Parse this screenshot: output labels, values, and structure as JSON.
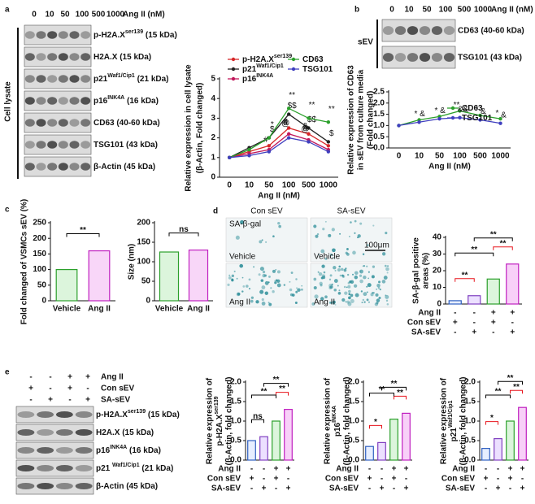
{
  "figure": {
    "panel_labels": [
      "a",
      "b",
      "c",
      "d",
      "e"
    ],
    "blots": [
      {
        "treatment": "Ang II (nM)",
        "color": "#e8141c",
        "doses": [
          "0",
          "10",
          "50",
          "100",
          "500",
          "1000"
        ],
        "group": "Cell lysate",
        "bands": [
          {
            "text": "p-H2A.X",
            "sup": "ser139",
            "after": " (15 kDa)"
          },
          {
            "text": "H2A.X (15 kDa)"
          },
          {
            "text": "p21",
            "sup": "Waf1/Cip1",
            "after": " (21 kDa)"
          },
          {
            "text": "p16",
            "sup": "INK4A",
            "after": " (16 kDa)"
          },
          {
            "text": "CD63 (40-60 kDa)"
          },
          {
            "text": "TSG101 (43 kDa)"
          },
          {
            "text": "β-Actin (45 kDa)"
          }
        ]
      },
      {
        "treatment": "Ang II (nM)",
        "color": "#e8141c",
        "doses": [
          "0",
          "10",
          "50",
          "100",
          "500",
          "1000"
        ],
        "group": "sEV",
        "bands": [
          {
            "text": "CD63 (40-60 kDa)"
          },
          {
            "text": "TSG101 (43 kDa)"
          }
        ]
      },
      {
        "conditions": [
          {
            "name": "Ang II",
            "color": "#e8141c",
            "signs": [
              "-",
              "-",
              "+",
              "+"
            ]
          },
          {
            "name": "Con sEV",
            "color": "#6a3db8",
            "signs": [
              "+",
              "-",
              "+",
              "-"
            ]
          },
          {
            "name": "SA-sEV",
            "color": "#6a3db8",
            "signs": [
              "-",
              "+",
              "-",
              "+"
            ]
          }
        ],
        "bands": [
          {
            "text": "p-H2A.X",
            "sup": "ser139",
            "after": " (15 kDa)"
          },
          {
            "text": "H2A.X (15 kDa)"
          },
          {
            "text": "p16",
            "sup": "INK4A",
            "after": " (16 kDa)"
          },
          {
            "text": "p21 ",
            "sup": "Waf1/Cip1",
            "after": " (21 kDa)"
          },
          {
            "text": "β-Actin (45 kDa)"
          }
        ]
      }
    ],
    "micrographs": {
      "columns": [
        "Con sEV",
        "SA-sEV"
      ],
      "column_color": "#6a3db8",
      "stain": "SA-β-gal",
      "scale": "100μm",
      "rows": [
        "Vehicle",
        "Ang II"
      ],
      "row_colors": [
        "#333333",
        "#e8141c"
      ]
    }
  },
  "chart_data": [
    {
      "type": "line",
      "ylabel": [
        "Relative expression in cell lysate",
        "(β-Actin, Fold changed)"
      ],
      "xlabel": "Ang II (nM)",
      "categories": [
        "0",
        "10",
        "50",
        "100",
        "500",
        "1000"
      ],
      "ylim": [
        0,
        5
      ],
      "yticks": [
        0,
        1,
        2,
        3,
        4,
        5
      ],
      "series": [
        {
          "name": {
            "text": "p-H2A.X",
            "sup": "ser139"
          },
          "color": "#d62728",
          "values": [
            1,
            1.3,
            1.6,
            2.5,
            2.2,
            1.6
          ],
          "markers": [
            null,
            null,
            "#",
            "#",
            "#",
            null
          ]
        },
        {
          "name": {
            "text": "p21",
            "sup": "Waf1/Cip1"
          },
          "color": "#222222",
          "values": [
            1,
            1.5,
            2.0,
            3.2,
            2.5,
            1.8
          ],
          "markers": [
            null,
            null,
            "$",
            "$$",
            "$$",
            "$"
          ]
        },
        {
          "name": {
            "text": "p16",
            "sup": "INK4A"
          },
          "color": "#c2185b",
          "values": [
            1,
            1.2,
            1.4,
            2.2,
            1.9,
            1.4
          ],
          "markers": [
            null,
            null,
            null,
            "@",
            "@",
            null
          ]
        },
        {
          "name": {
            "text": "CD63"
          },
          "color": "#2ca02c",
          "values": [
            1,
            1.4,
            2.0,
            3.5,
            3.0,
            2.8
          ],
          "markers": [
            null,
            null,
            "*",
            "**",
            "**",
            "**"
          ]
        },
        {
          "name": {
            "text": "TSG101"
          },
          "color": "#3f3fbf",
          "values": [
            1,
            1.1,
            1.3,
            2.0,
            1.8,
            1.3
          ],
          "markers": [
            null,
            null,
            null,
            "&",
            "&",
            null
          ]
        }
      ]
    },
    {
      "type": "line",
      "ylabel": [
        "Relative expression of CD63",
        "in sEV from culture media",
        "(Fold changed)"
      ],
      "xlabel": "Ang II (nM)",
      "categories": [
        "0",
        "10",
        "50",
        "100",
        "500",
        "1000"
      ],
      "ylim": [
        0,
        2.5
      ],
      "yticks": [
        {
          "value": 0,
          "label": "0.0"
        },
        0.5,
        {
          "value": 1,
          "label": "1.0"
        },
        1.5,
        {
          "value": 2,
          "label": "2.0"
        },
        2.5
      ],
      "series": [
        {
          "name": {
            "text": "CD63"
          },
          "color": "#2ca02c",
          "values": [
            1,
            1.25,
            1.4,
            1.65,
            1.45,
            1.3
          ],
          "markers": [
            null,
            "*",
            "*",
            "**",
            "*",
            "*"
          ]
        },
        {
          "name": {
            "text": "TSG101"
          },
          "color": "#3f3fbf",
          "values": [
            1,
            1.15,
            1.3,
            1.35,
            1.25,
            1.1
          ],
          "markers": [
            null,
            "&",
            "&",
            "&&",
            "&",
            "&"
          ]
        }
      ]
    },
    {
      "type": "bar",
      "ylabel": [
        "Fold changed of VSMCs sEV (%)"
      ],
      "categories": [
        "Vehicle",
        "Ang II"
      ],
      "values": [
        100,
        160
      ],
      "colors": [
        "#dcf5dc",
        "#f8d6f8"
      ],
      "edge_colors": [
        "#2ca02c",
        "#c020c0"
      ],
      "ylim": [
        0,
        250
      ],
      "yticks": [
        0,
        50,
        100,
        150,
        200,
        250
      ],
      "brackets": [
        {
          "from": 0,
          "to": 1,
          "label": "**",
          "color": "#000000"
        }
      ]
    },
    {
      "type": "bar",
      "ylabel": [
        "Size (nm)"
      ],
      "categories": [
        "Vehicle",
        "Ang II"
      ],
      "values": [
        125,
        130
      ],
      "colors": [
        "#dcf5dc",
        "#f8d6f8"
      ],
      "edge_colors": [
        "#2ca02c",
        "#c020c0"
      ],
      "ylim": [
        0,
        200
      ],
      "yticks": [
        0,
        50,
        100,
        150,
        200
      ],
      "brackets": [
        {
          "from": 0,
          "to": 1,
          "label": "ns",
          "color": "#000000"
        }
      ]
    },
    {
      "type": "bar",
      "ylabel": [
        "SA-β-gal positive",
        "areas (%)"
      ],
      "values": [
        2,
        5,
        15,
        24
      ],
      "colors": [
        "#e6eeff",
        "#ece0ff",
        "#dcf5dc",
        "#f8d0f8"
      ],
      "edge_colors": [
        "#3060c0",
        "#8040c0",
        "#2ca02c",
        "#c020c0"
      ],
      "ylim": [
        0,
        40
      ],
      "yticks": [
        0,
        10,
        20,
        30,
        40
      ],
      "conditions": [
        {
          "name": "Ang II",
          "color": "#e8141c",
          "signs": [
            "-",
            "-",
            "+",
            "+"
          ]
        },
        {
          "name": "Con sEV",
          "color": "#6a3db8",
          "signs": [
            "+",
            "-",
            "+",
            "-"
          ]
        },
        {
          "name": "SA-sEV",
          "color": "#6a3db8",
          "signs": [
            "-",
            "+",
            "-",
            "+"
          ]
        }
      ],
      "brackets": [
        {
          "from": 0,
          "to": 1,
          "label": "**",
          "color": "#e8141c"
        },
        {
          "from": 2,
          "to": 3,
          "label": "**",
          "color": "#e8141c"
        },
        {
          "from": 1,
          "to": 3,
          "label": "**",
          "color": "#000000"
        },
        {
          "from": 0,
          "to": 2,
          "label": "**",
          "color": "#000000"
        }
      ]
    },
    {
      "type": "bar",
      "ylabel": [
        "Relative expression of",
        {
          "text": "p-H2A.X",
          "sup": "ser139"
        },
        "(β-Actin, fold changed)"
      ],
      "values": [
        0.5,
        0.6,
        1.0,
        1.3
      ],
      "colors": [
        "#e6eeff",
        "#ece0ff",
        "#dcf5dc",
        "#f8d0f8"
      ],
      "edge_colors": [
        "#3060c0",
        "#8040c0",
        "#2ca02c",
        "#c020c0"
      ],
      "ylim": [
        0,
        2
      ],
      "yticks": [
        {
          "value": 0,
          "label": "0.0"
        },
        0.5,
        {
          "value": 1,
          "label": "1.0"
        },
        1.5,
        {
          "value": 2,
          "label": "2.0"
        }
      ],
      "conditions": [
        {
          "name": "Ang II",
          "color": "#e8141c",
          "signs": [
            "-",
            "-",
            "+",
            "+"
          ]
        },
        {
          "name": "Con sEV",
          "color": "#6a3db8",
          "signs": [
            "+",
            "-",
            "+",
            "-"
          ]
        },
        {
          "name": "SA-sEV",
          "color": "#6a3db8",
          "signs": [
            "-",
            "+",
            "-",
            "+"
          ]
        }
      ],
      "brackets": [
        {
          "from": 0,
          "to": 1,
          "label": "ns",
          "color": "#000000"
        },
        {
          "from": 2,
          "to": 3,
          "label": "**",
          "color": "#e8141c"
        },
        {
          "from": 1,
          "to": 3,
          "label": "**",
          "color": "#000000"
        },
        {
          "from": 0,
          "to": 2,
          "label": "**",
          "color": "#000000"
        }
      ]
    },
    {
      "type": "bar",
      "ylabel": [
        "Relative expression of",
        {
          "text": "p16",
          "sup": "INK4A"
        },
        "(β-Actin, fold changed)"
      ],
      "values": [
        0.35,
        0.45,
        1.05,
        1.2
      ],
      "colors": [
        "#e6eeff",
        "#ece0ff",
        "#dcf5dc",
        "#f8d0f8"
      ],
      "edge_colors": [
        "#3060c0",
        "#8040c0",
        "#2ca02c",
        "#c020c0"
      ],
      "ylim": [
        0,
        2
      ],
      "yticks": [
        {
          "value": 0,
          "label": "0.0"
        },
        0.5,
        {
          "value": 1,
          "label": "1.0"
        },
        1.5,
        {
          "value": 2,
          "label": "2.0"
        }
      ],
      "conditions": [
        {
          "name": "Ang II",
          "color": "#e8141c",
          "signs": [
            "-",
            "-",
            "+",
            "+"
          ]
        },
        {
          "name": "Con sEV",
          "color": "#6a3db8",
          "signs": [
            "+",
            "-",
            "+",
            "-"
          ]
        },
        {
          "name": "SA-sEV",
          "color": "#6a3db8",
          "signs": [
            "-",
            "+",
            "-",
            "+"
          ]
        }
      ],
      "brackets": [
        {
          "from": 0,
          "to": 1,
          "label": "*",
          "color": "#e8141c"
        },
        {
          "from": 2,
          "to": 3,
          "label": "**",
          "color": "#e8141c"
        },
        {
          "from": 1,
          "to": 3,
          "label": "**",
          "color": "#000000"
        },
        {
          "from": 0,
          "to": 2,
          "label": "**",
          "color": "#000000"
        }
      ]
    },
    {
      "type": "bar",
      "ylabel": [
        "Relative expression of",
        {
          "text": "p21",
          "sup": "Waf1/Cip1"
        },
        "(β-Actin, fold changed)"
      ],
      "values": [
        0.3,
        0.55,
        1.0,
        1.35
      ],
      "colors": [
        "#e6eeff",
        "#ece0ff",
        "#dcf5dc",
        "#f8d0f8"
      ],
      "edge_colors": [
        "#3060c0",
        "#8040c0",
        "#2ca02c",
        "#c020c0"
      ],
      "ylim": [
        0,
        2
      ],
      "yticks": [
        {
          "value": 0,
          "label": "0.0"
        },
        0.5,
        {
          "value": 1,
          "label": "1.0"
        },
        1.5,
        {
          "value": 2,
          "label": "2.0"
        }
      ],
      "conditions": [
        {
          "name": "Ang II",
          "color": "#e8141c",
          "signs": [
            "-",
            "-",
            "+",
            "+"
          ]
        },
        {
          "name": "Con sEV",
          "color": "#6a3db8",
          "signs": [
            "+",
            "-",
            "+",
            "-"
          ]
        },
        {
          "name": "SA-sEV",
          "color": "#6a3db8",
          "signs": [
            "-",
            "+",
            "-",
            "+"
          ]
        }
      ],
      "brackets": [
        {
          "from": 0,
          "to": 1,
          "label": "*",
          "color": "#e8141c"
        },
        {
          "from": 2,
          "to": 3,
          "label": "**",
          "color": "#e8141c"
        },
        {
          "from": 1,
          "to": 3,
          "label": "**",
          "color": "#000000"
        },
        {
          "from": 0,
          "to": 2,
          "label": "**",
          "color": "#000000"
        }
      ]
    }
  ]
}
